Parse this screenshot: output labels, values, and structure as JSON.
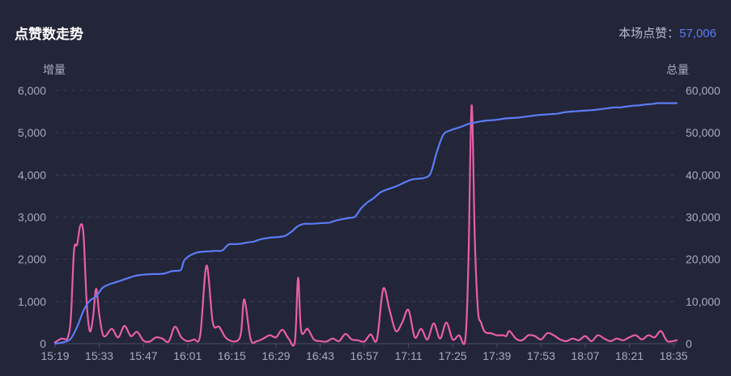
{
  "header": {
    "title": "点赞数走势",
    "total_label": "本场点赞：",
    "total_value": "57,006"
  },
  "colors": {
    "background": "#232539",
    "increment": "#e85fa8",
    "total": "#5b7cf6",
    "grid": "#3b3e55"
  },
  "chart_data": {
    "type": "line",
    "title": "点赞数走势",
    "y_left_label": "增量",
    "y_right_label": "总量",
    "y_left_ticks": [
      "0",
      "1,000",
      "2,000",
      "3,000",
      "4,000",
      "5,000",
      "6,000"
    ],
    "y_right_ticks": [
      "0",
      "10,000",
      "20,000",
      "30,000",
      "40,000",
      "50,000",
      "60,000"
    ],
    "y_left_range": [
      0,
      6000
    ],
    "y_right_range": [
      0,
      60000
    ],
    "x_range_minutes": [
      0,
      197
    ],
    "x_ticks": [
      "15:19",
      "15:33",
      "15:47",
      "16:01",
      "16:15",
      "16:29",
      "16:43",
      "16:57",
      "17:11",
      "17:25",
      "17:39",
      "17:53",
      "18:07",
      "18:21",
      "18:35"
    ],
    "grid": "horizontal dashed",
    "series": [
      {
        "axis": "left",
        "color": "#e85fa8",
        "x": [
          0,
          1,
          2,
          3,
          4,
          5,
          6,
          7,
          8,
          9,
          10,
          11,
          12,
          13,
          14,
          15,
          16,
          18,
          20,
          22,
          24,
          26,
          28,
          30,
          32,
          34,
          36,
          38,
          40,
          42,
          44,
          46,
          48,
          50,
          52,
          54,
          56,
          58,
          59,
          60,
          62,
          64,
          66,
          68,
          70,
          72,
          74,
          76,
          77,
          78,
          80,
          82,
          84,
          86,
          88,
          90,
          92,
          94,
          96,
          98,
          100,
          102,
          104,
          106,
          108,
          110,
          112,
          114,
          116,
          118,
          120,
          122,
          124,
          126,
          128,
          130,
          131,
          132,
          133,
          134,
          135,
          136,
          137,
          138,
          140,
          142,
          143,
          144,
          146,
          148,
          150,
          152,
          154,
          156,
          158,
          160,
          162,
          164,
          166,
          168,
          170,
          172,
          174,
          176,
          178,
          180,
          182,
          184,
          186,
          188,
          190,
          192,
          194,
          197
        ],
        "y": [
          30,
          80,
          120,
          110,
          140,
          600,
          2200,
          2350,
          2800,
          2600,
          1000,
          300,
          600,
          1300,
          700,
          250,
          180,
          350,
          150,
          420,
          180,
          280,
          70,
          50,
          150,
          120,
          50,
          400,
          150,
          60,
          100,
          200,
          1850,
          500,
          400,
          150,
          60,
          80,
          300,
          1050,
          100,
          60,
          120,
          200,
          150,
          330,
          120,
          50,
          1560,
          300,
          350,
          100,
          60,
          50,
          120,
          60,
          230,
          100,
          80,
          50,
          220,
          100,
          1300,
          800,
          300,
          500,
          800,
          150,
          350,
          100,
          480,
          120,
          500,
          100,
          200,
          100,
          2000,
          5650,
          2500,
          800,
          500,
          300,
          250,
          250,
          200,
          200,
          180,
          300,
          120,
          80,
          200,
          180,
          100,
          250,
          200,
          100,
          60,
          120,
          80,
          180,
          60,
          200,
          120,
          60,
          120,
          80,
          150,
          200,
          100,
          200,
          150,
          300,
          60,
          80
        ]
      },
      {
        "axis": "right",
        "color": "#5b7cf6",
        "x": [
          0,
          3,
          5,
          7,
          9,
          11,
          13,
          15,
          17,
          19,
          21,
          23,
          25,
          27,
          29,
          31,
          33,
          35,
          37,
          39,
          40,
          41,
          43,
          45,
          47,
          49,
          51,
          53,
          55,
          57,
          59,
          61,
          63,
          65,
          67,
          69,
          71,
          73,
          75,
          77,
          79,
          81,
          83,
          85,
          87,
          89,
          91,
          93,
          95,
          97,
          99,
          101,
          103,
          105,
          107,
          109,
          111,
          113,
          115,
          117,
          119,
          121,
          123,
          125,
          127,
          129,
          130,
          131,
          133,
          135,
          137,
          139,
          141,
          143,
          145,
          147,
          149,
          151,
          153,
          155,
          157,
          159,
          161,
          163,
          165,
          167,
          169,
          171,
          173,
          175,
          177,
          179,
          181,
          183,
          185,
          187,
          189,
          191,
          193,
          195,
          197
        ],
        "y": [
          0,
          400,
          1200,
          4000,
          7800,
          10200,
          11200,
          13200,
          14000,
          14500,
          15000,
          15500,
          16000,
          16300,
          16400,
          16500,
          16500,
          16700,
          17200,
          17300,
          17600,
          19800,
          21000,
          21600,
          21800,
          21900,
          22000,
          22100,
          23500,
          23600,
          23700,
          24000,
          24200,
          24700,
          25000,
          25200,
          25300,
          25600,
          26600,
          27900,
          28400,
          28400,
          28500,
          28600,
          28700,
          29200,
          29500,
          29800,
          30100,
          32100,
          33500,
          34500,
          35800,
          36500,
          37000,
          37600,
          38300,
          38900,
          39100,
          39300,
          40400,
          45500,
          49500,
          50500,
          51000,
          51500,
          51800,
          52100,
          52400,
          52700,
          52900,
          53000,
          53200,
          53400,
          53500,
          53600,
          53800,
          54000,
          54200,
          54300,
          54400,
          54500,
          54800,
          55000,
          55100,
          55200,
          55300,
          55400,
          55600,
          55800,
          56000,
          56000,
          56200,
          56400,
          56500,
          56700,
          56800,
          57006,
          57006,
          57006,
          57006
        ]
      }
    ]
  }
}
